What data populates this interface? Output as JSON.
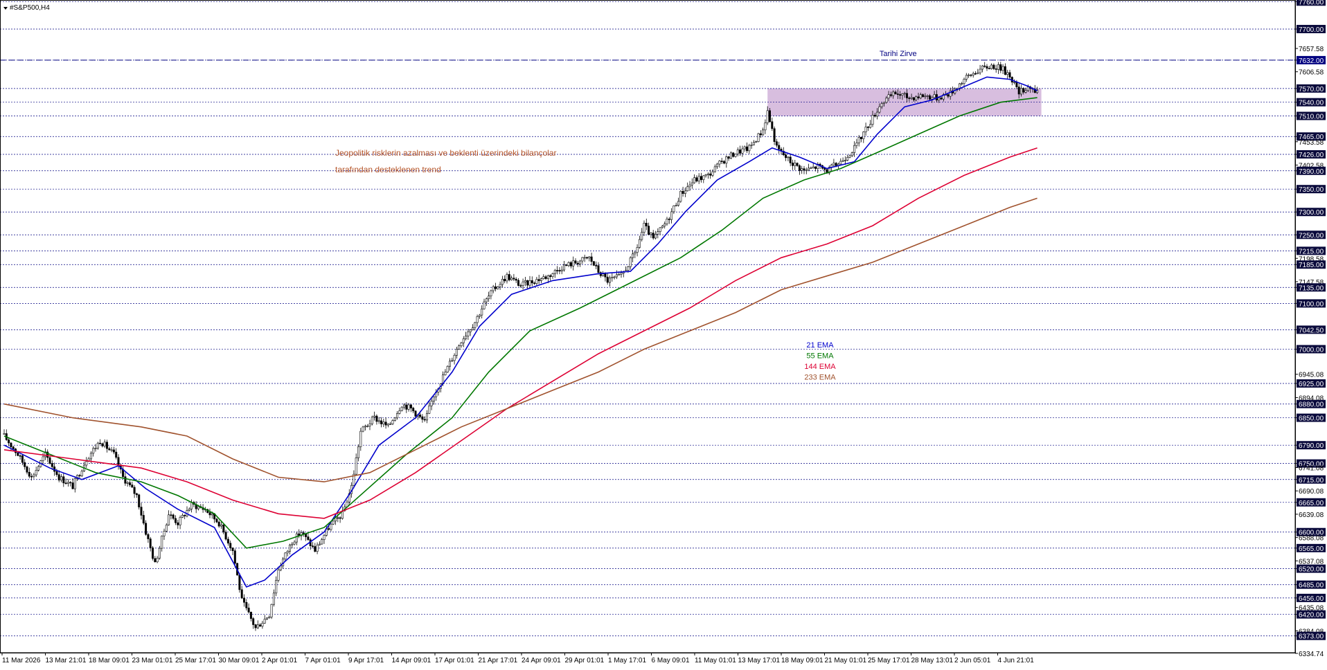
{
  "header": {
    "symbol_label": "#S&P500,H4"
  },
  "chart_data": {
    "type": "candlestick",
    "title": "#S&P500,H4",
    "ylim": [
      6334.74,
      7762
    ],
    "grid": false,
    "price_ticks": [
      {
        "value": 7760.0,
        "label": "7760.00",
        "line": true
      },
      {
        "value": 7700.0,
        "label": "7700.00",
        "line": true
      },
      {
        "value": 7657.58,
        "label": "7657.58",
        "line": false
      },
      {
        "value": 7632.0,
        "label": "7632.00",
        "line": true
      },
      {
        "value": 7606.58,
        "label": "7606.58",
        "line": false
      },
      {
        "value": 7570.0,
        "label": "7570.00",
        "line": true
      },
      {
        "value": 7540.0,
        "label": "7540.00",
        "line": true
      },
      {
        "value": 7510.0,
        "label": "7510.00",
        "line": true
      },
      {
        "value": 7465.0,
        "label": "7465.00",
        "line": true
      },
      {
        "value": 7453.58,
        "label": "7453.58",
        "line": false
      },
      {
        "value": 7426.0,
        "label": "7426.00",
        "line": true
      },
      {
        "value": 7402.58,
        "label": "7402.58",
        "line": false
      },
      {
        "value": 7390.0,
        "label": "7390.00",
        "line": true
      },
      {
        "value": 7350.0,
        "label": "7350.00",
        "line": true
      },
      {
        "value": 7300.0,
        "label": "7300.00",
        "line": true
      },
      {
        "value": 7250.0,
        "label": "7250.00",
        "line": true
      },
      {
        "value": 7215.0,
        "label": "7215.00",
        "line": true
      },
      {
        "value": 7198.58,
        "label": "7198.58",
        "line": false
      },
      {
        "value": 7185.0,
        "label": "7185.00",
        "line": true
      },
      {
        "value": 7147.58,
        "label": "7147.58",
        "line": false
      },
      {
        "value": 7135.0,
        "label": "7135.00",
        "line": true
      },
      {
        "value": 7100.0,
        "label": "7100.00",
        "line": true
      },
      {
        "value": 7042.5,
        "label": "7042.50",
        "line": true
      },
      {
        "value": 7000.0,
        "label": "7000.00",
        "line": true
      },
      {
        "value": 6945.08,
        "label": "6945.08",
        "line": false
      },
      {
        "value": 6925.0,
        "label": "6925.00",
        "line": true
      },
      {
        "value": 6894.08,
        "label": "6894.08",
        "line": false
      },
      {
        "value": 6880.0,
        "label": "6880.00",
        "line": true
      },
      {
        "value": 6850.0,
        "label": "6850.00",
        "line": true
      },
      {
        "value": 6790.0,
        "label": "6790.00",
        "line": true
      },
      {
        "value": 6750.0,
        "label": "6750.00",
        "line": true
      },
      {
        "value": 6741.08,
        "label": "6741.08",
        "line": false
      },
      {
        "value": 6715.0,
        "label": "6715.00",
        "line": true
      },
      {
        "value": 6690.08,
        "label": "6690.08",
        "line": false
      },
      {
        "value": 6665.0,
        "label": "6665.00",
        "line": true
      },
      {
        "value": 6639.08,
        "label": "6639.08",
        "line": false
      },
      {
        "value": 6600.0,
        "label": "6600.00",
        "line": true
      },
      {
        "value": 6588.08,
        "label": "6588.08",
        "line": false
      },
      {
        "value": 6565.0,
        "label": "6565.00",
        "line": true
      },
      {
        "value": 6537.08,
        "label": "6537.08",
        "line": false
      },
      {
        "value": 6520.0,
        "label": "6520.00",
        "line": true
      },
      {
        "value": 6485.0,
        "label": "6485.00",
        "line": true
      },
      {
        "value": 6456.0,
        "label": "6456.00",
        "line": true
      },
      {
        "value": 6435.08,
        "label": "6435.08",
        "line": false
      },
      {
        "value": 6420.0,
        "label": "6420.00",
        "line": true
      },
      {
        "value": 6384.08,
        "label": "6384.08",
        "line": false
      },
      {
        "value": 6373.0,
        "label": "6373.00",
        "line": true
      },
      {
        "value": 6334.74,
        "label": "6334.74",
        "line": false
      }
    ],
    "time_labels": [
      "11 Mar 2026",
      "13 Mar 21:01",
      "18 Mar 09:01",
      "23 Mar 01:01",
      "25 Mar 17:01",
      "30 Mar 09:01",
      "2 Apr 01:01",
      "7 Apr 01:01",
      "9 Apr 17:01",
      "14 Apr 09:01",
      "17 Apr 01:01",
      "21 Apr 17:01",
      "24 Apr 09:01",
      "29 Apr 01:01",
      "1 May 17:01",
      "6 May 09:01",
      "11 May 01:01",
      "13 May 17:01",
      "18 May 09:01",
      "21 May 01:01",
      "25 May 17:01",
      "28 May 13:01",
      "2 Jun 05:01",
      "4 Jun 21:01"
    ],
    "close_path": [
      [
        0,
        6810
      ],
      [
        6,
        6770
      ],
      [
        12,
        6720
      ],
      [
        18,
        6770
      ],
      [
        24,
        6720
      ],
      [
        30,
        6700
      ],
      [
        36,
        6760
      ],
      [
        42,
        6800
      ],
      [
        48,
        6770
      ],
      [
        52,
        6720
      ],
      [
        58,
        6680
      ],
      [
        62,
        6600
      ],
      [
        66,
        6530
      ],
      [
        72,
        6640
      ],
      [
        76,
        6620
      ],
      [
        82,
        6660
      ],
      [
        88,
        6650
      ],
      [
        94,
        6620
      ],
      [
        100,
        6560
      ],
      [
        104,
        6450
      ],
      [
        110,
        6390
      ],
      [
        116,
        6420
      ],
      [
        120,
        6520
      ],
      [
        126,
        6580
      ],
      [
        130,
        6600
      ],
      [
        136,
        6560
      ],
      [
        142,
        6610
      ],
      [
        148,
        6640
      ],
      [
        152,
        6700
      ],
      [
        156,
        6820
      ],
      [
        162,
        6850
      ],
      [
        168,
        6830
      ],
      [
        174,
        6880
      ],
      [
        178,
        6870
      ],
      [
        184,
        6840
      ],
      [
        188,
        6900
      ],
      [
        194,
        6960
      ],
      [
        200,
        7020
      ],
      [
        206,
        7060
      ],
      [
        210,
        7100
      ],
      [
        214,
        7130
      ],
      [
        220,
        7160
      ],
      [
        226,
        7140
      ],
      [
        232,
        7150
      ],
      [
        238,
        7160
      ],
      [
        244,
        7180
      ],
      [
        250,
        7190
      ],
      [
        256,
        7200
      ],
      [
        260,
        7170
      ],
      [
        264,
        7150
      ],
      [
        270,
        7160
      ],
      [
        276,
        7210
      ],
      [
        280,
        7270
      ],
      [
        284,
        7240
      ],
      [
        290,
        7280
      ],
      [
        296,
        7340
      ],
      [
        302,
        7370
      ],
      [
        308,
        7380
      ],
      [
        314,
        7410
      ],
      [
        320,
        7430
      ],
      [
        326,
        7440
      ],
      [
        332,
        7480
      ],
      [
        334,
        7520
      ],
      [
        338,
        7440
      ],
      [
        344,
        7410
      ],
      [
        350,
        7390
      ],
      [
        356,
        7400
      ],
      [
        360,
        7390
      ],
      [
        366,
        7410
      ],
      [
        372,
        7440
      ],
      [
        378,
        7490
      ],
      [
        384,
        7540
      ],
      [
        390,
        7560
      ],
      [
        396,
        7550
      ],
      [
        402,
        7555
      ],
      [
        408,
        7550
      ],
      [
        414,
        7560
      ],
      [
        420,
        7590
      ],
      [
        426,
        7610
      ],
      [
        432,
        7620
      ],
      [
        436,
        7615
      ],
      [
        440,
        7600
      ],
      [
        444,
        7560
      ],
      [
        448,
        7575
      ],
      [
        452,
        7560
      ]
    ],
    "series": [
      {
        "name": "21 EMA",
        "color": "#0000cc",
        "points": [
          [
            0,
            6790
          ],
          [
            20,
            6740
          ],
          [
            34,
            6715
          ],
          [
            50,
            6745
          ],
          [
            62,
            6695
          ],
          [
            76,
            6650
          ],
          [
            92,
            6610
          ],
          [
            106,
            6480
          ],
          [
            114,
            6495
          ],
          [
            126,
            6550
          ],
          [
            140,
            6600
          ],
          [
            152,
            6690
          ],
          [
            164,
            6790
          ],
          [
            180,
            6850
          ],
          [
            196,
            6950
          ],
          [
            208,
            7050
          ],
          [
            222,
            7120
          ],
          [
            240,
            7150
          ],
          [
            260,
            7165
          ],
          [
            274,
            7170
          ],
          [
            286,
            7230
          ],
          [
            298,
            7300
          ],
          [
            312,
            7370
          ],
          [
            326,
            7410
          ],
          [
            336,
            7440
          ],
          [
            348,
            7420
          ],
          [
            360,
            7395
          ],
          [
            372,
            7410
          ],
          [
            382,
            7470
          ],
          [
            394,
            7530
          ],
          [
            406,
            7545
          ],
          [
            418,
            7570
          ],
          [
            430,
            7595
          ],
          [
            440,
            7590
          ],
          [
            448,
            7575
          ],
          [
            452,
            7565
          ]
        ]
      },
      {
        "name": "55 EMA",
        "color": "#007700",
        "points": [
          [
            0,
            6810
          ],
          [
            20,
            6770
          ],
          [
            40,
            6730
          ],
          [
            60,
            6710
          ],
          [
            76,
            6680
          ],
          [
            92,
            6640
          ],
          [
            106,
            6565
          ],
          [
            122,
            6580
          ],
          [
            140,
            6610
          ],
          [
            158,
            6690
          ],
          [
            176,
            6770
          ],
          [
            196,
            6850
          ],
          [
            212,
            6950
          ],
          [
            230,
            7040
          ],
          [
            252,
            7090
          ],
          [
            276,
            7150
          ],
          [
            296,
            7200
          ],
          [
            314,
            7260
          ],
          [
            332,
            7330
          ],
          [
            350,
            7370
          ],
          [
            366,
            7395
          ],
          [
            382,
            7430
          ],
          [
            400,
            7470
          ],
          [
            418,
            7510
          ],
          [
            436,
            7540
          ],
          [
            452,
            7550
          ]
        ]
      },
      {
        "name": "144 EMA",
        "color": "#dd0033",
        "points": [
          [
            0,
            6780
          ],
          [
            30,
            6760
          ],
          [
            60,
            6740
          ],
          [
            80,
            6710
          ],
          [
            100,
            6670
          ],
          [
            120,
            6640
          ],
          [
            140,
            6630
          ],
          [
            160,
            6670
          ],
          [
            180,
            6730
          ],
          [
            200,
            6800
          ],
          [
            220,
            6870
          ],
          [
            240,
            6930
          ],
          [
            260,
            6990
          ],
          [
            280,
            7040
          ],
          [
            300,
            7090
          ],
          [
            320,
            7150
          ],
          [
            340,
            7200
          ],
          [
            360,
            7230
          ],
          [
            380,
            7270
          ],
          [
            400,
            7330
          ],
          [
            420,
            7380
          ],
          [
            440,
            7420
          ],
          [
            452,
            7440
          ]
        ]
      },
      {
        "name": "233 EMA",
        "color": "#a0522d",
        "points": [
          [
            0,
            6880
          ],
          [
            30,
            6850
          ],
          [
            60,
            6830
          ],
          [
            80,
            6810
          ],
          [
            100,
            6760
          ],
          [
            120,
            6720
          ],
          [
            140,
            6710
          ],
          [
            160,
            6730
          ],
          [
            180,
            6780
          ],
          [
            200,
            6830
          ],
          [
            220,
            6870
          ],
          [
            240,
            6910
          ],
          [
            260,
            6950
          ],
          [
            280,
            7000
          ],
          [
            300,
            7040
          ],
          [
            320,
            7080
          ],
          [
            340,
            7130
          ],
          [
            360,
            7160
          ],
          [
            380,
            7190
          ],
          [
            400,
            7230
          ],
          [
            420,
            7270
          ],
          [
            440,
            7310
          ],
          [
            452,
            7330
          ]
        ]
      }
    ],
    "horizontal_line": {
      "value": 7632.0,
      "label": "Tarihi Zirve",
      "color": "#000080"
    },
    "zone": {
      "low": 7510,
      "high": 7570,
      "color": "#cba8d4"
    },
    "annotation": {
      "lines": [
        "Jeopolitik risklerin azalması ve beklenti üzerindeki bilançolar",
        "tarafından desteklenen trend"
      ],
      "color": "#b5552a"
    },
    "legend": [
      {
        "label": "21 EMA",
        "color": "#0000cc"
      },
      {
        "label": "55 EMA",
        "color": "#007700"
      },
      {
        "label": "144 EMA",
        "color": "#dd0033"
      },
      {
        "label": "233 EMA",
        "color": "#a0522d"
      }
    ]
  }
}
